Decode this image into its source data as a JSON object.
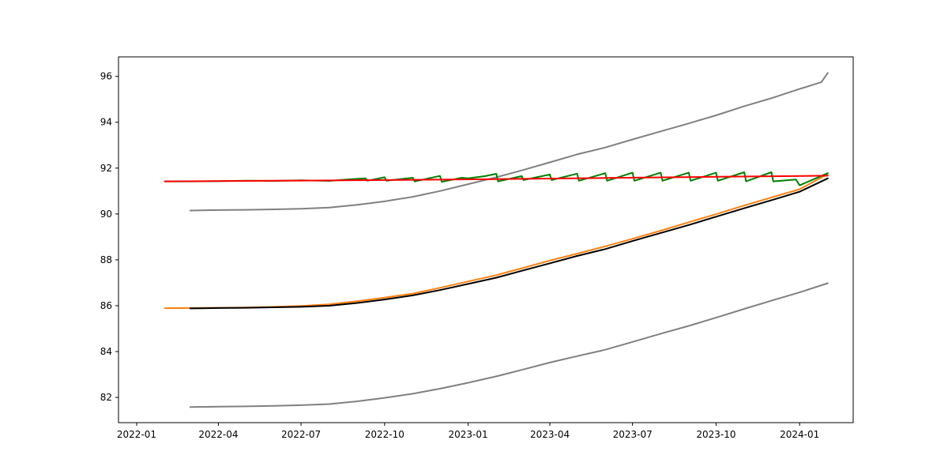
{
  "chart_data": {
    "type": "line",
    "title": "",
    "xlabel": "",
    "ylabel": "",
    "grid": false,
    "legend": "none",
    "xlim": [
      "2021-12-12",
      "2024-02-29"
    ],
    "ylim": [
      80.9,
      96.85
    ],
    "x_ticks": [
      "2022-01",
      "2022-04",
      "2022-07",
      "2022-10",
      "2023-01",
      "2023-04",
      "2023-07",
      "2023-10",
      "2024-01"
    ],
    "y_ticks": [
      82,
      84,
      86,
      88,
      90,
      92,
      94,
      96
    ],
    "series": [
      {
        "color": "#808080",
        "points": [
          [
            "2022-03-01",
            90.15
          ],
          [
            "2022-04-01",
            90.17
          ],
          [
            "2022-05-01",
            90.18
          ],
          [
            "2022-06-01",
            90.2
          ],
          [
            "2022-07-01",
            90.23
          ],
          [
            "2022-08-01",
            90.28
          ],
          [
            "2022-09-01",
            90.4
          ],
          [
            "2022-10-01",
            90.55
          ],
          [
            "2022-11-01",
            90.75
          ],
          [
            "2022-12-01",
            91.0
          ],
          [
            "2023-01-01",
            91.3
          ],
          [
            "2023-02-01",
            91.6
          ],
          [
            "2023-03-01",
            91.9
          ],
          [
            "2023-04-01",
            92.25
          ],
          [
            "2023-05-01",
            92.6
          ],
          [
            "2023-06-01",
            92.9
          ],
          [
            "2023-07-01",
            93.25
          ],
          [
            "2023-08-01",
            93.6
          ],
          [
            "2023-09-01",
            93.95
          ],
          [
            "2023-10-01",
            94.3
          ],
          [
            "2023-11-01",
            94.7
          ],
          [
            "2023-12-01",
            95.05
          ],
          [
            "2024-01-01",
            95.45
          ],
          [
            "2024-01-25",
            95.75
          ],
          [
            "2024-02-01",
            96.15
          ]
        ]
      },
      {
        "color": "#808080",
        "points": [
          [
            "2022-03-01",
            81.58
          ],
          [
            "2022-04-01",
            81.6
          ],
          [
            "2022-05-01",
            81.61
          ],
          [
            "2022-06-01",
            81.63
          ],
          [
            "2022-07-01",
            81.66
          ],
          [
            "2022-08-01",
            81.71
          ],
          [
            "2022-09-01",
            81.83
          ],
          [
            "2022-10-01",
            81.98
          ],
          [
            "2022-11-01",
            82.16
          ],
          [
            "2022-12-01",
            82.38
          ],
          [
            "2023-01-01",
            82.64
          ],
          [
            "2023-02-01",
            82.92
          ],
          [
            "2023-03-01",
            83.2
          ],
          [
            "2023-04-01",
            83.52
          ],
          [
            "2023-05-01",
            83.8
          ],
          [
            "2023-06-01",
            84.08
          ],
          [
            "2023-07-01",
            84.42
          ],
          [
            "2023-08-01",
            84.78
          ],
          [
            "2023-09-01",
            85.12
          ],
          [
            "2023-10-01",
            85.48
          ],
          [
            "2023-11-01",
            85.86
          ],
          [
            "2023-12-01",
            86.22
          ],
          [
            "2024-01-01",
            86.58
          ],
          [
            "2024-02-01",
            86.98
          ]
        ]
      },
      {
        "color": "#ff7f0e",
        "points": [
          [
            "2022-02-01",
            85.89
          ],
          [
            "2022-03-01",
            85.9
          ],
          [
            "2022-04-01",
            85.91
          ],
          [
            "2022-05-01",
            85.92
          ],
          [
            "2022-06-01",
            85.95
          ],
          [
            "2022-07-01",
            85.99
          ],
          [
            "2022-08-01",
            86.06
          ],
          [
            "2022-09-01",
            86.2
          ],
          [
            "2022-10-01",
            86.35
          ],
          [
            "2022-11-01",
            86.53
          ],
          [
            "2022-12-01",
            86.78
          ],
          [
            "2023-01-01",
            87.06
          ],
          [
            "2023-02-01",
            87.33
          ],
          [
            "2023-03-01",
            87.63
          ],
          [
            "2023-04-01",
            87.97
          ],
          [
            "2023-05-01",
            88.27
          ],
          [
            "2023-06-01",
            88.59
          ],
          [
            "2023-07-01",
            88.92
          ],
          [
            "2023-08-01",
            89.27
          ],
          [
            "2023-09-01",
            89.64
          ],
          [
            "2023-10-01",
            89.99
          ],
          [
            "2023-11-01",
            90.37
          ],
          [
            "2023-12-01",
            90.72
          ],
          [
            "2024-01-01",
            91.08
          ],
          [
            "2024-02-01",
            91.74
          ]
        ]
      },
      {
        "color": "#000000",
        "points": [
          [
            "2022-03-01",
            85.88
          ],
          [
            "2022-04-01",
            85.9
          ],
          [
            "2022-05-01",
            85.91
          ],
          [
            "2022-06-01",
            85.93
          ],
          [
            "2022-07-01",
            85.95
          ],
          [
            "2022-08-01",
            86.0
          ],
          [
            "2022-09-01",
            86.12
          ],
          [
            "2022-10-01",
            86.27
          ],
          [
            "2022-11-01",
            86.45
          ],
          [
            "2022-12-01",
            86.68
          ],
          [
            "2023-01-01",
            86.95
          ],
          [
            "2023-02-01",
            87.22
          ],
          [
            "2023-03-01",
            87.52
          ],
          [
            "2023-04-01",
            87.85
          ],
          [
            "2023-05-01",
            88.17
          ],
          [
            "2023-06-01",
            88.47
          ],
          [
            "2023-07-01",
            88.82
          ],
          [
            "2023-08-01",
            89.17
          ],
          [
            "2023-09-01",
            89.52
          ],
          [
            "2023-10-01",
            89.88
          ],
          [
            "2023-11-01",
            90.25
          ],
          [
            "2023-12-01",
            90.6
          ],
          [
            "2024-01-01",
            90.97
          ],
          [
            "2024-02-01",
            91.55
          ]
        ]
      },
      {
        "color": "#008000",
        "points": [
          [
            "2022-02-01",
            91.42
          ],
          [
            "2022-03-01",
            91.42
          ],
          [
            "2022-04-01",
            91.43
          ],
          [
            "2022-05-01",
            91.45
          ],
          [
            "2022-06-01",
            91.44
          ],
          [
            "2022-07-01",
            91.47
          ],
          [
            "2022-08-01",
            91.44
          ],
          [
            "2022-08-20",
            91.5
          ],
          [
            "2022-09-10",
            91.55
          ],
          [
            "2022-09-12",
            91.45
          ],
          [
            "2022-10-01",
            91.6
          ],
          [
            "2022-10-03",
            91.45
          ],
          [
            "2022-11-01",
            91.58
          ],
          [
            "2022-11-03",
            91.42
          ],
          [
            "2022-12-01",
            91.66
          ],
          [
            "2022-12-03",
            91.4
          ],
          [
            "2022-12-25",
            91.58
          ],
          [
            "2023-01-01",
            91.55
          ],
          [
            "2023-01-20",
            91.65
          ],
          [
            "2023-02-01",
            91.75
          ],
          [
            "2023-02-03",
            91.42
          ],
          [
            "2023-03-01",
            91.65
          ],
          [
            "2023-03-03",
            91.48
          ],
          [
            "2023-04-01",
            91.72
          ],
          [
            "2023-04-03",
            91.48
          ],
          [
            "2023-05-01",
            91.76
          ],
          [
            "2023-05-03",
            91.45
          ],
          [
            "2023-06-01",
            91.78
          ],
          [
            "2023-06-03",
            91.45
          ],
          [
            "2023-07-01",
            91.8
          ],
          [
            "2023-07-03",
            91.45
          ],
          [
            "2023-08-01",
            91.8
          ],
          [
            "2023-08-03",
            91.45
          ],
          [
            "2023-09-01",
            91.8
          ],
          [
            "2023-09-03",
            91.45
          ],
          [
            "2023-10-01",
            91.8
          ],
          [
            "2023-10-03",
            91.45
          ],
          [
            "2023-11-01",
            91.82
          ],
          [
            "2023-11-03",
            91.42
          ],
          [
            "2023-12-01",
            91.82
          ],
          [
            "2023-12-03",
            91.42
          ],
          [
            "2023-12-28",
            91.5
          ],
          [
            "2024-01-01",
            91.25
          ],
          [
            "2024-02-01",
            91.78
          ]
        ]
      },
      {
        "color": "#ff0000",
        "points": [
          [
            "2022-02-01",
            91.42
          ],
          [
            "2022-06-01",
            91.45
          ],
          [
            "2022-10-01",
            91.48
          ],
          [
            "2023-02-01",
            91.52
          ],
          [
            "2023-06-01",
            91.57
          ],
          [
            "2023-10-01",
            91.62
          ],
          [
            "2024-02-01",
            91.67
          ]
        ]
      }
    ]
  }
}
